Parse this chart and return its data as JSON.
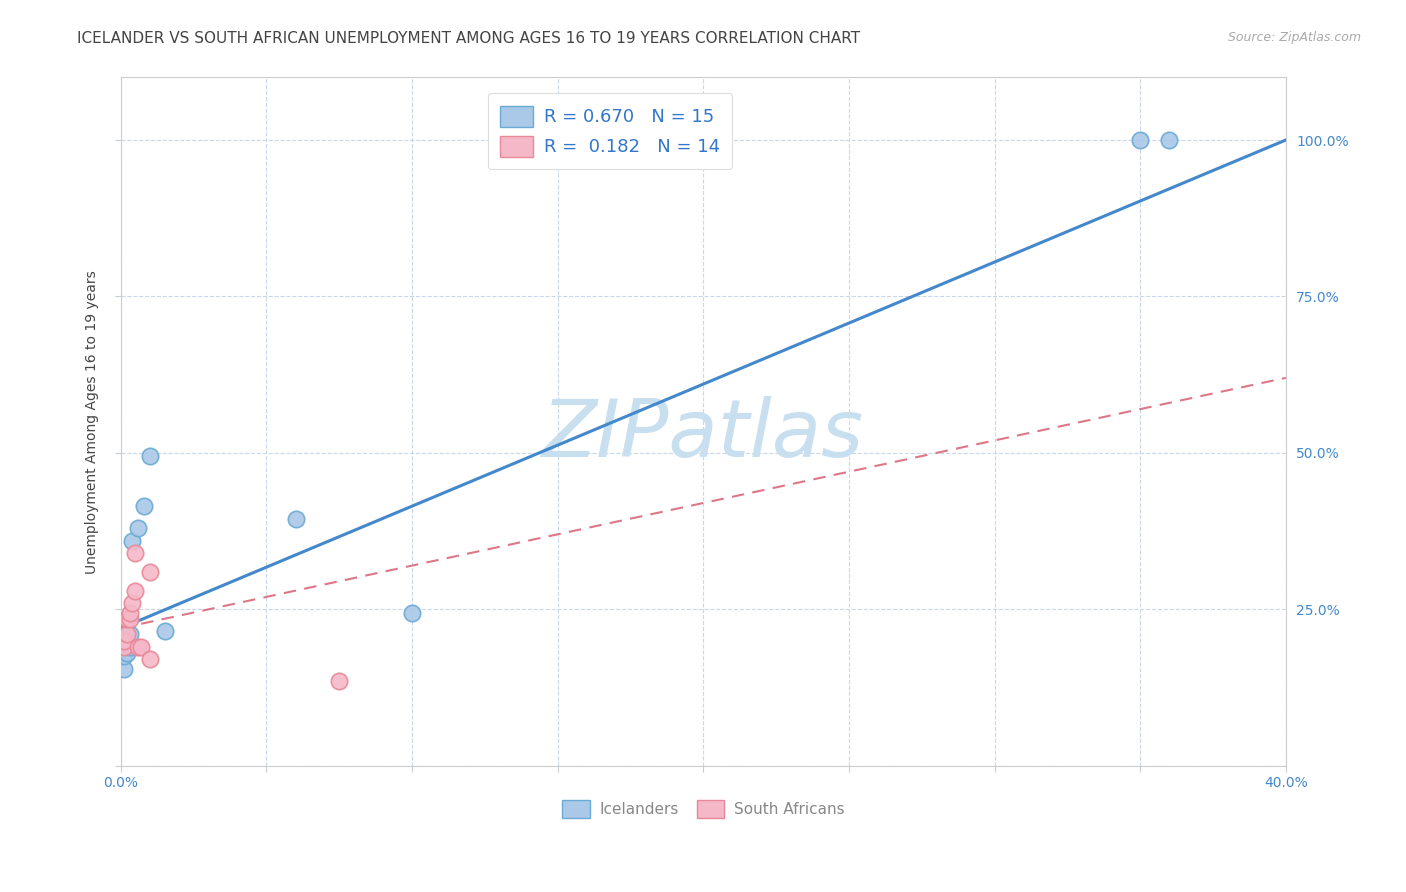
{
  "title": "ICELANDER VS SOUTH AFRICAN UNEMPLOYMENT AMONG AGES 16 TO 19 YEARS CORRELATION CHART",
  "source": "Source: ZipAtlas.com",
  "ylabel": "Unemployment Among Ages 16 to 19 years",
  "xlim": [
    0.0,
    0.4
  ],
  "ylim": [
    0.0,
    1.1
  ],
  "xticks": [
    0.0,
    0.05,
    0.1,
    0.15,
    0.2,
    0.25,
    0.3,
    0.35,
    0.4
  ],
  "xtick_labels": [
    "0.0%",
    "",
    "",
    "",
    "",
    "",
    "",
    "",
    "40.0%"
  ],
  "ytick_labels": [
    "",
    "25.0%",
    "50.0%",
    "75.0%",
    "100.0%"
  ],
  "yticks": [
    0.0,
    0.25,
    0.5,
    0.75,
    1.0
  ],
  "icelander_x": [
    0.001,
    0.001,
    0.002,
    0.002,
    0.003,
    0.003,
    0.004,
    0.006,
    0.008,
    0.01,
    0.015,
    0.06,
    0.1,
    0.35,
    0.36
  ],
  "icelander_y": [
    0.155,
    0.175,
    0.18,
    0.195,
    0.19,
    0.21,
    0.36,
    0.38,
    0.415,
    0.495,
    0.215,
    0.395,
    0.245,
    1.0,
    1.0
  ],
  "sa_x": [
    0.001,
    0.001,
    0.002,
    0.002,
    0.003,
    0.003,
    0.004,
    0.005,
    0.005,
    0.006,
    0.007,
    0.01,
    0.01,
    0.075
  ],
  "sa_y": [
    0.19,
    0.2,
    0.21,
    0.235,
    0.235,
    0.245,
    0.26,
    0.28,
    0.34,
    0.19,
    0.19,
    0.31,
    0.17,
    0.135
  ],
  "ice_R": 0.67,
  "ice_N": 15,
  "sa_R": 0.182,
  "sa_N": 14,
  "ice_scatter_color": "#aac8e8",
  "sa_scatter_color": "#f5b8c8",
  "ice_edge_color": "#6aaad4",
  "sa_edge_color": "#e88898",
  "ice_line_color": "#4488cc",
  "sa_line_color": "#dd7788",
  "legend_text_color": "#3377cc",
  "title_color": "#444444",
  "axis_tick_color": "#4488cc",
  "grid_color": "#c8d8e8",
  "watermark_color": "#c8dff0",
  "bottom_legend_color": "#888888",
  "yaxis_label_color": "#444444"
}
